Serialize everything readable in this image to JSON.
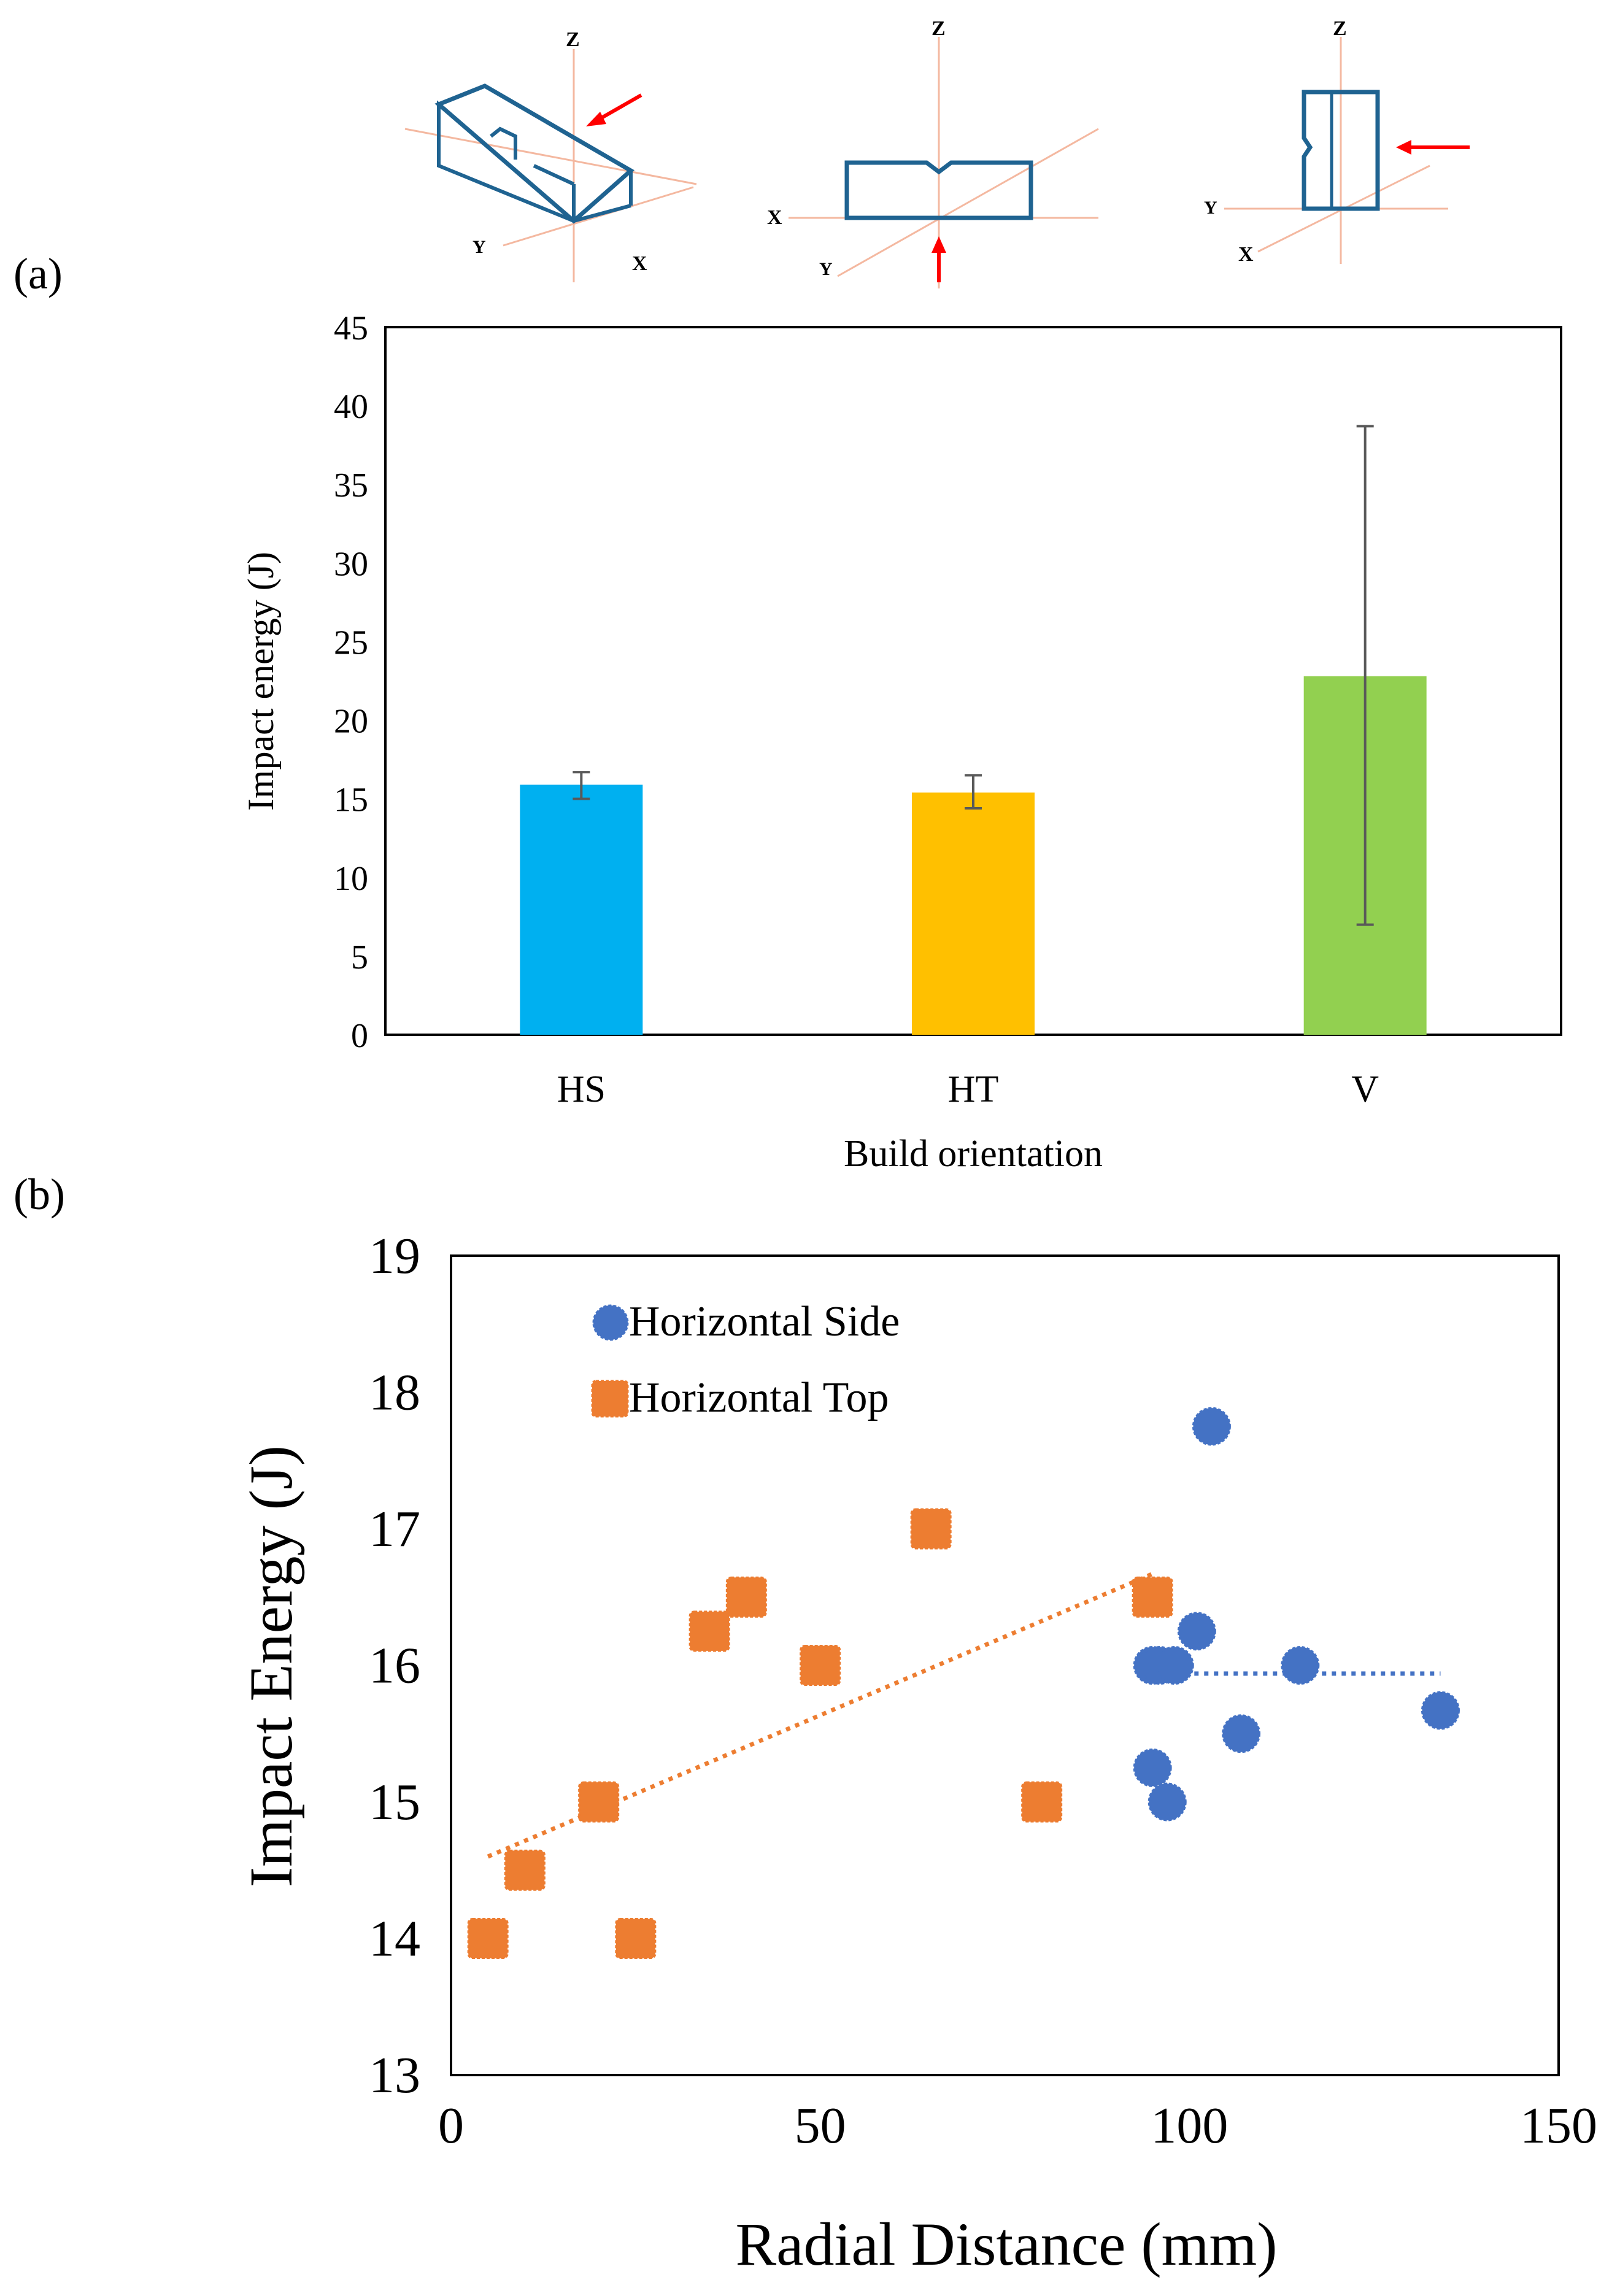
{
  "panel_labels": {
    "a": "(a)",
    "b": "(b)"
  },
  "diagrams": [
    {
      "name": "HS",
      "axes": {
        "z": "Z",
        "y": "Y",
        "x": "X"
      }
    },
    {
      "name": "HT",
      "axes": {
        "z": "Z",
        "x": "X",
        "y": "Y"
      }
    },
    {
      "name": "V",
      "axes": {
        "z": "Z",
        "y": "Y",
        "x": "X"
      }
    }
  ],
  "colors": {
    "hs_bar": "#00B0F0",
    "ht_bar": "#FFC000",
    "v_bar": "#92D050",
    "series_side": "#4472C4",
    "series_top": "#ED7D31",
    "diagram_stroke": "#1F6391",
    "axis_line": "#F4B8A0",
    "arrow": "#FF0000"
  },
  "chart_data": [
    {
      "type": "bar",
      "title": "",
      "categories": [
        "HS",
        "HT",
        "V"
      ],
      "values": [
        15.9,
        15.4,
        22.8
      ],
      "error_low": [
        15.0,
        14.4,
        7.0
      ],
      "error_high": [
        16.7,
        16.5,
        38.7
      ],
      "xlabel": "Build orientation",
      "ylabel": "Impact energy (J)",
      "ylim": [
        0,
        45
      ],
      "yticks": [
        "0",
        "5",
        "10",
        "15",
        "20",
        "25",
        "30",
        "35",
        "40",
        "45"
      ]
    },
    {
      "type": "scatter",
      "title": "",
      "xlabel": "Radial Distance (mm)",
      "ylabel": "Impact Energy (J)",
      "xlim": [
        0,
        150
      ],
      "ylim": [
        13,
        19
      ],
      "xticks": [
        "0",
        "50",
        "100",
        "150"
      ],
      "yticks": [
        "13",
        "14",
        "15",
        "16",
        "17",
        "18",
        "19"
      ],
      "legend_position": "top-left",
      "series": [
        {
          "name": "Horizontal Side",
          "marker": "circle",
          "points": [
            [
              95,
              16.0
            ],
            [
              96,
              16.0
            ],
            [
              98,
              16.0
            ],
            [
              101,
              16.25
            ],
            [
              103,
              17.75
            ],
            [
              107,
              15.5
            ],
            [
              115,
              16.0
            ],
            [
              134,
              15.67
            ],
            [
              95,
              15.25
            ],
            [
              97,
              15.0
            ]
          ],
          "trendline": {
            "x": [
              98,
              134
            ],
            "y": [
              15.94,
              15.94
            ]
          }
        },
        {
          "name": "Horizontal Top",
          "marker": "square",
          "points": [
            [
              5,
              14.0
            ],
            [
              10,
              14.5
            ],
            [
              20,
              15.0
            ],
            [
              25,
              14.0
            ],
            [
              35,
              16.25
            ],
            [
              40,
              16.5
            ],
            [
              50,
              16.0
            ],
            [
              65,
              17.0
            ],
            [
              80,
              15.0
            ],
            [
              95,
              16.5
            ]
          ],
          "trendline": {
            "x": [
              5,
              95
            ],
            "y": [
              14.6,
              16.67
            ]
          }
        }
      ]
    }
  ]
}
